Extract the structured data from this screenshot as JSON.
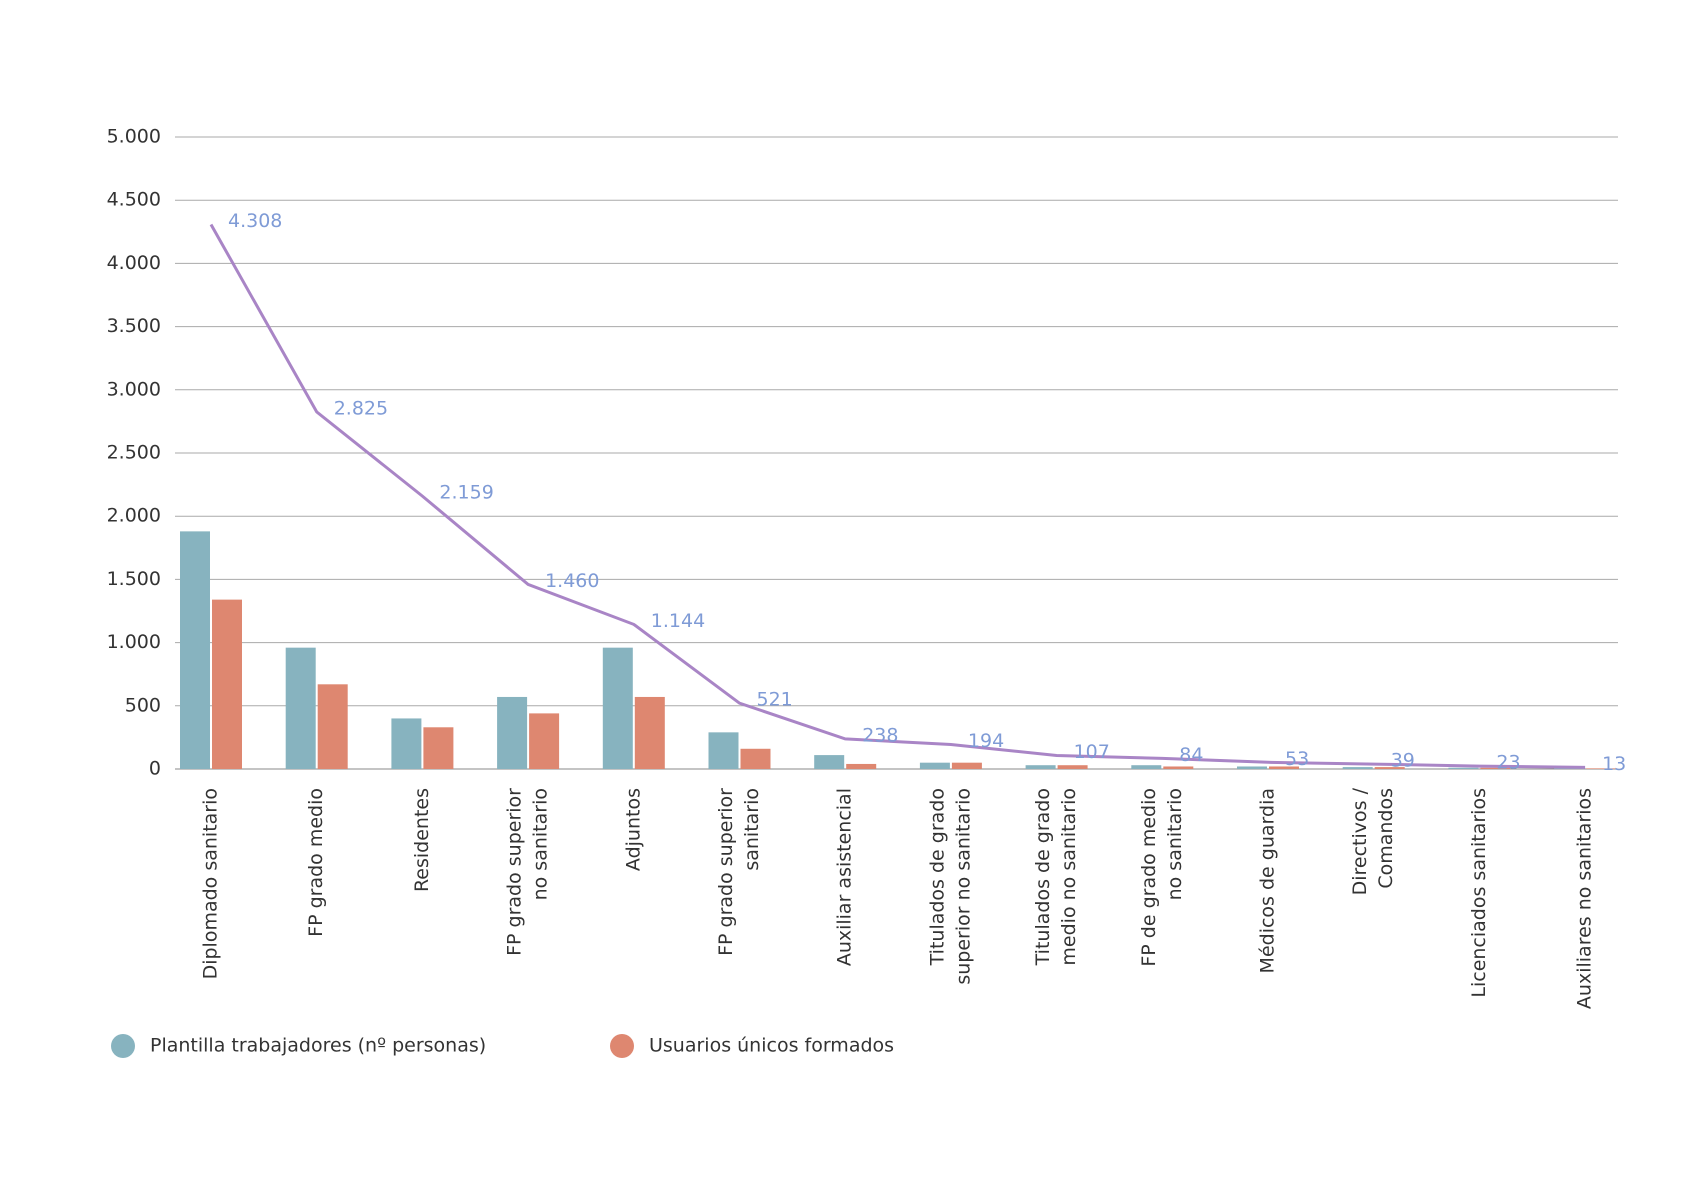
{
  "chart_data": {
    "type": "bar",
    "categories": [
      [
        "Diplomado sanitario"
      ],
      [
        "FP grado medio"
      ],
      [
        "Residentes"
      ],
      [
        "FP grado superior",
        "no sanitario"
      ],
      [
        "Adjuntos"
      ],
      [
        "FP grado superior",
        "sanitario"
      ],
      [
        "Auxiliar asistencial"
      ],
      [
        "Titulados de grado",
        "superior no sanitario"
      ],
      [
        "Titulados de grado",
        "medio no sanitario"
      ],
      [
        "FP de grado medio",
        "no sanitario"
      ],
      [
        "Médicos de guardia"
      ],
      [
        "Directivos /",
        "Comandos"
      ],
      [
        "Licenciados sanitarios"
      ],
      [
        "Auxiliares no sanitarios"
      ]
    ],
    "series": [
      {
        "name": "Plantilla trabajadores (nº personas)",
        "color": "#87b3bf",
        "values": [
          1880,
          960,
          400,
          570,
          960,
          290,
          110,
          50,
          30,
          30,
          20,
          15,
          10,
          5
        ]
      },
      {
        "name": "Usuarios únicos formados",
        "color": "#de8770",
        "values": [
          1340,
          670,
          330,
          440,
          570,
          160,
          40,
          50,
          30,
          20,
          20,
          15,
          10,
          5
        ]
      }
    ],
    "line": {
      "color": "#a985c6",
      "label_color": "#7f9bd6",
      "values": [
        4308,
        2825,
        2159,
        1460,
        1144,
        521,
        238,
        194,
        107,
        84,
        53,
        39,
        23,
        13
      ],
      "value_labels": [
        "4.308",
        "2.825",
        "2.159",
        "1.460",
        "1.144",
        "521",
        "238",
        "194",
        "107",
        "84",
        "53",
        "39",
        "23",
        "13"
      ]
    },
    "ylim": [
      0,
      5000
    ],
    "yticks": [
      {
        "value": 0,
        "label": "0"
      },
      {
        "value": 500,
        "label": "500"
      },
      {
        "value": 1000,
        "label": "1.000"
      },
      {
        "value": 1500,
        "label": "1.500"
      },
      {
        "value": 2000,
        "label": "2.000"
      },
      {
        "value": 2500,
        "label": "2.500"
      },
      {
        "value": 3000,
        "label": "3.000"
      },
      {
        "value": 3500,
        "label": "3.500"
      },
      {
        "value": 4000,
        "label": "4.000"
      },
      {
        "value": 4500,
        "label": "4.500"
      },
      {
        "value": 5000,
        "label": "5.000"
      }
    ],
    "grid": true
  }
}
